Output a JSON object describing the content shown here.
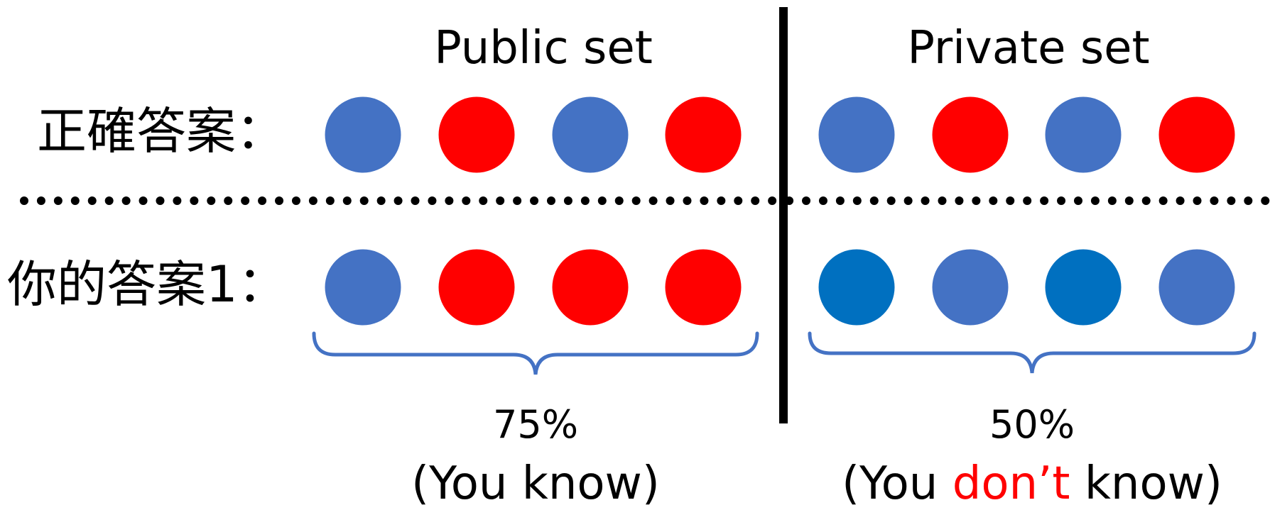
{
  "headers": {
    "public": "Public set",
    "private": "Private set"
  },
  "row_labels": {
    "correct": "正確答案：",
    "yours": "你的答案1："
  },
  "colors": {
    "blue": "#4472C4",
    "red": "#FF0000",
    "dark_blue": "#0070C0"
  },
  "rows": {
    "correct": {
      "public": [
        "blue",
        "red",
        "blue",
        "red"
      ],
      "private": [
        "blue",
        "red",
        "blue",
        "red"
      ]
    },
    "yours": {
      "public": [
        "blue",
        "red",
        "red",
        "red"
      ],
      "private": [
        "dark_blue",
        "blue",
        "dark_blue",
        "blue"
      ]
    }
  },
  "public_result": {
    "accuracy": "75%",
    "note": "(You know)"
  },
  "private_result": {
    "accuracy": "50%",
    "note_pre": "(You ",
    "note_emph": "don’t",
    "note_post": " know)"
  }
}
